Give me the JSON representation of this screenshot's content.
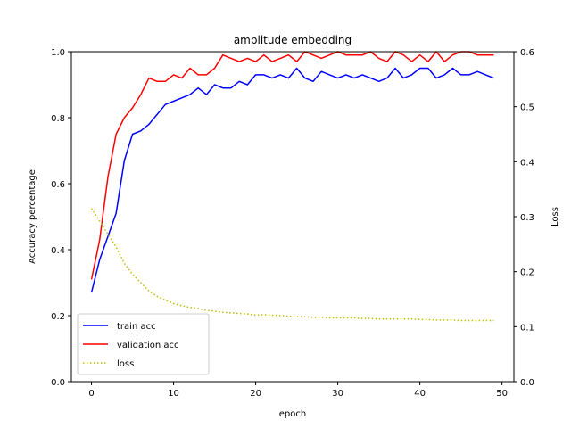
{
  "chart_data": {
    "type": "line",
    "title": "amplitude embedding",
    "xlabel": "epoch",
    "ylabel": "Accuracy percentage",
    "y2label": "Loss",
    "xlim": [
      -2.45,
      51.45
    ],
    "ylim": [
      0.0,
      1.0
    ],
    "y2lim": [
      0.0,
      0.6
    ],
    "xticks": [
      0,
      10,
      20,
      30,
      40,
      50
    ],
    "yticks": [
      0.0,
      0.2,
      0.4,
      0.6,
      0.8,
      1.0
    ],
    "y2ticks": [
      0.0,
      0.1,
      0.2,
      0.3,
      0.4,
      0.5,
      0.6
    ],
    "grid": false,
    "legend_position": "lower-left",
    "x": [
      0,
      1,
      2,
      3,
      4,
      5,
      6,
      7,
      8,
      9,
      10,
      11,
      12,
      13,
      14,
      15,
      16,
      17,
      18,
      19,
      20,
      21,
      22,
      23,
      24,
      25,
      26,
      27,
      28,
      29,
      30,
      31,
      32,
      33,
      34,
      35,
      36,
      37,
      38,
      39,
      40,
      41,
      42,
      43,
      44,
      45,
      46,
      47,
      48,
      49
    ],
    "series": [
      {
        "name": "train acc",
        "axis": "left",
        "color": "#0000ff",
        "style": "solid",
        "values": [
          0.27,
          0.37,
          0.44,
          0.51,
          0.67,
          0.75,
          0.76,
          0.78,
          0.81,
          0.84,
          0.85,
          0.86,
          0.87,
          0.89,
          0.87,
          0.9,
          0.89,
          0.89,
          0.91,
          0.9,
          0.93,
          0.93,
          0.92,
          0.93,
          0.92,
          0.95,
          0.92,
          0.91,
          0.94,
          0.93,
          0.92,
          0.93,
          0.92,
          0.93,
          0.92,
          0.91,
          0.92,
          0.95,
          0.92,
          0.93,
          0.95,
          0.95,
          0.92,
          0.93,
          0.95,
          0.93,
          0.93,
          0.94,
          0.93,
          0.92
        ]
      },
      {
        "name": "validation acc",
        "axis": "left",
        "color": "#ff0000",
        "style": "solid",
        "values": [
          0.31,
          0.43,
          0.62,
          0.75,
          0.8,
          0.83,
          0.87,
          0.92,
          0.91,
          0.91,
          0.93,
          0.92,
          0.95,
          0.93,
          0.93,
          0.95,
          0.99,
          0.98,
          0.97,
          0.98,
          0.97,
          0.99,
          0.97,
          0.98,
          0.99,
          0.97,
          1.0,
          0.99,
          0.98,
          0.99,
          1.0,
          0.99,
          0.99,
          0.99,
          1.0,
          0.98,
          0.97,
          1.0,
          0.99,
          0.97,
          0.99,
          0.97,
          1.0,
          0.97,
          0.99,
          1.0,
          1.0,
          0.99,
          0.99,
          0.99
        ]
      },
      {
        "name": "loss",
        "axis": "right",
        "color": "#bfbf00",
        "style": "dotted",
        "values": [
          0.315,
          0.292,
          0.268,
          0.245,
          0.215,
          0.195,
          0.18,
          0.165,
          0.155,
          0.148,
          0.142,
          0.138,
          0.135,
          0.133,
          0.13,
          0.128,
          0.126,
          0.125,
          0.124,
          0.123,
          0.121,
          0.122,
          0.121,
          0.12,
          0.119,
          0.118,
          0.118,
          0.117,
          0.117,
          0.116,
          0.116,
          0.116,
          0.116,
          0.115,
          0.115,
          0.114,
          0.114,
          0.114,
          0.114,
          0.114,
          0.113,
          0.113,
          0.112,
          0.112,
          0.112,
          0.111,
          0.111,
          0.111,
          0.111,
          0.111
        ]
      }
    ]
  }
}
